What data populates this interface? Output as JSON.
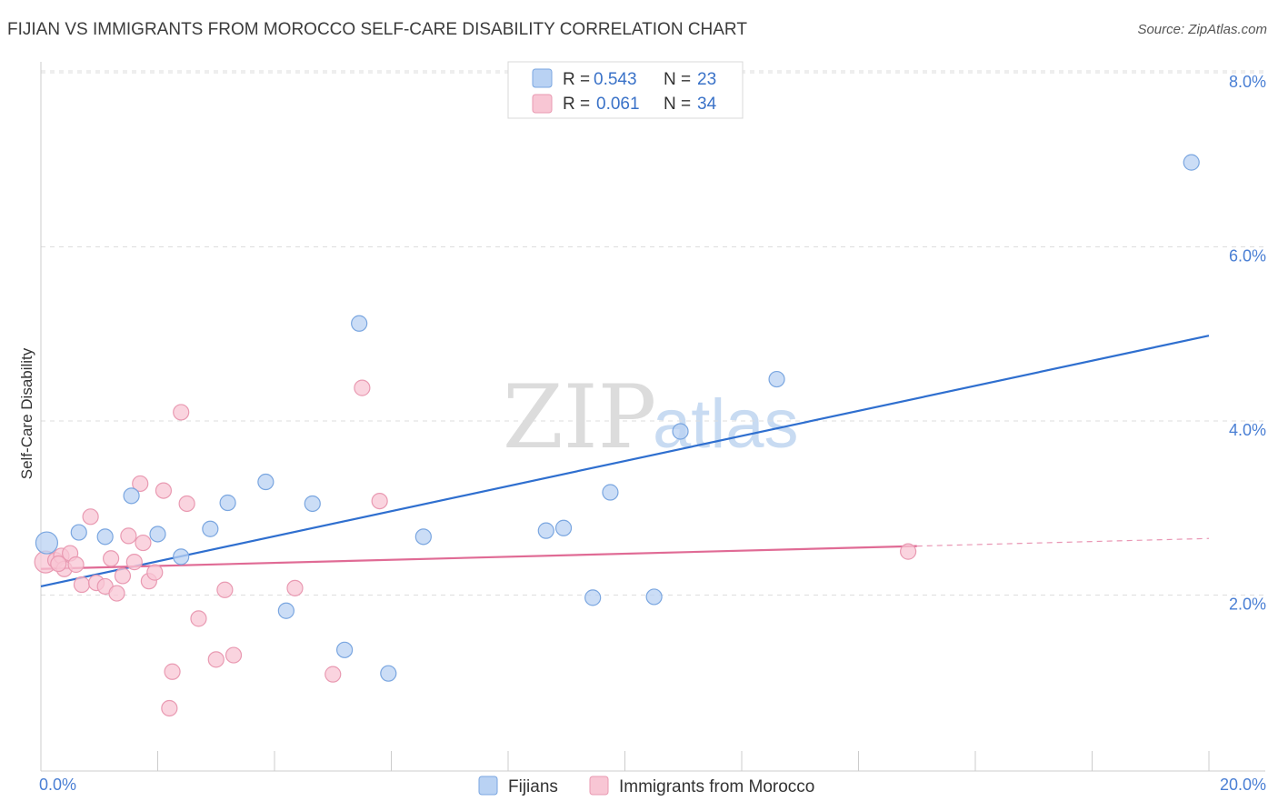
{
  "title": "FIJIAN VS IMMIGRANTS FROM MOROCCO SELF-CARE DISABILITY CORRELATION CHART",
  "source": "Source: ZipAtlas.com",
  "watermark": {
    "zip": "ZIP",
    "atlas": "atlas"
  },
  "colors": {
    "blue_fill": "#b9d2f3",
    "blue_stroke": "#7aa6e0",
    "blue_line": "#2f6fcf",
    "pink_fill": "#f8c6d4",
    "pink_stroke": "#e99ab2",
    "pink_line": "#e06b95",
    "grid": "#dddddd",
    "tick_label": "#4a7fd4"
  },
  "legend": {
    "row1": {
      "r_label": "R =",
      "r_value": "0.543",
      "n_label": "N =",
      "n_value": "23"
    },
    "row2": {
      "r_label": "R =",
      "r_value": "0.061",
      "n_label": "N =",
      "n_value": "34"
    }
  },
  "chart_data": {
    "type": "scatter",
    "title": "FIJIAN VS IMMIGRANTS FROM MOROCCO SELF-CARE DISABILITY CORRELATION CHART",
    "xlabel": "",
    "ylabel": "Self-Care Disability",
    "xlim": [
      0,
      20
    ],
    "ylim": [
      0,
      8
    ],
    "x_tick_labels": {
      "min": "0.0%",
      "max": "20.0%"
    },
    "y_ticks": [
      {
        "value": 2,
        "label": "2.0%"
      },
      {
        "value": 4,
        "label": "4.0%"
      },
      {
        "value": 6,
        "label": "6.0%"
      },
      {
        "value": 8,
        "label": "8.0%"
      }
    ],
    "grid": true,
    "legend_position": "top-center",
    "series": [
      {
        "name": "Fijians",
        "color": "#b9d2f3",
        "r": 0.543,
        "n": 23,
        "trend": {
          "x0": 0,
          "y0": 2.1,
          "x1": 20,
          "y1": 4.98,
          "solid_until": 20
        },
        "points": [
          {
            "x": 0.1,
            "y": 2.6,
            "big": true
          },
          {
            "x": 0.65,
            "y": 2.72
          },
          {
            "x": 1.1,
            "y": 2.67
          },
          {
            "x": 1.55,
            "y": 3.14
          },
          {
            "x": 2.0,
            "y": 2.7
          },
          {
            "x": 2.4,
            "y": 2.44
          },
          {
            "x": 2.9,
            "y": 2.76
          },
          {
            "x": 3.2,
            "y": 3.06
          },
          {
            "x": 3.85,
            "y": 3.3
          },
          {
            "x": 4.2,
            "y": 1.82
          },
          {
            "x": 4.65,
            "y": 3.05
          },
          {
            "x": 5.2,
            "y": 1.37
          },
          {
            "x": 5.45,
            "y": 5.12
          },
          {
            "x": 5.95,
            "y": 1.1
          },
          {
            "x": 6.55,
            "y": 2.67
          },
          {
            "x": 8.65,
            "y": 2.74
          },
          {
            "x": 8.95,
            "y": 2.77
          },
          {
            "x": 9.45,
            "y": 1.97
          },
          {
            "x": 9.75,
            "y": 3.18
          },
          {
            "x": 10.5,
            "y": 1.98
          },
          {
            "x": 10.95,
            "y": 3.88
          },
          {
            "x": 12.6,
            "y": 4.48
          },
          {
            "x": 19.7,
            "y": 6.97
          }
        ]
      },
      {
        "name": "Immigrants from Morocco",
        "color": "#f8c6d4",
        "r": 0.061,
        "n": 34,
        "trend": {
          "x0": 0,
          "y0": 2.3,
          "x1": 20,
          "y1": 2.65,
          "solid_until": 15
        },
        "points": [
          {
            "x": 0.08,
            "y": 2.38,
            "big": true
          },
          {
            "x": 0.25,
            "y": 2.4
          },
          {
            "x": 0.35,
            "y": 2.45
          },
          {
            "x": 0.4,
            "y": 2.3
          },
          {
            "x": 0.5,
            "y": 2.48
          },
          {
            "x": 0.6,
            "y": 2.35
          },
          {
            "x": 0.7,
            "y": 2.12
          },
          {
            "x": 0.85,
            "y": 2.9
          },
          {
            "x": 0.95,
            "y": 2.14
          },
          {
            "x": 1.1,
            "y": 2.1
          },
          {
            "x": 1.2,
            "y": 2.42
          },
          {
            "x": 1.3,
            "y": 2.02
          },
          {
            "x": 1.4,
            "y": 2.22
          },
          {
            "x": 1.5,
            "y": 2.68
          },
          {
            "x": 1.6,
            "y": 2.38
          },
          {
            "x": 1.7,
            "y": 3.28
          },
          {
            "x": 1.75,
            "y": 2.6
          },
          {
            "x": 1.85,
            "y": 2.16
          },
          {
            "x": 1.95,
            "y": 2.26
          },
          {
            "x": 2.1,
            "y": 3.2
          },
          {
            "x": 2.25,
            "y": 1.12
          },
          {
            "x": 2.2,
            "y": 0.7
          },
          {
            "x": 2.4,
            "y": 4.1
          },
          {
            "x": 2.5,
            "y": 3.05
          },
          {
            "x": 2.7,
            "y": 1.73
          },
          {
            "x": 3.0,
            "y": 1.26
          },
          {
            "x": 3.15,
            "y": 2.06
          },
          {
            "x": 3.3,
            "y": 1.31
          },
          {
            "x": 4.35,
            "y": 2.08
          },
          {
            "x": 5.0,
            "y": 1.09
          },
          {
            "x": 5.5,
            "y": 4.38
          },
          {
            "x": 5.8,
            "y": 3.08
          },
          {
            "x": 14.85,
            "y": 2.5
          },
          {
            "x": 0.3,
            "y": 2.36
          }
        ]
      }
    ]
  }
}
